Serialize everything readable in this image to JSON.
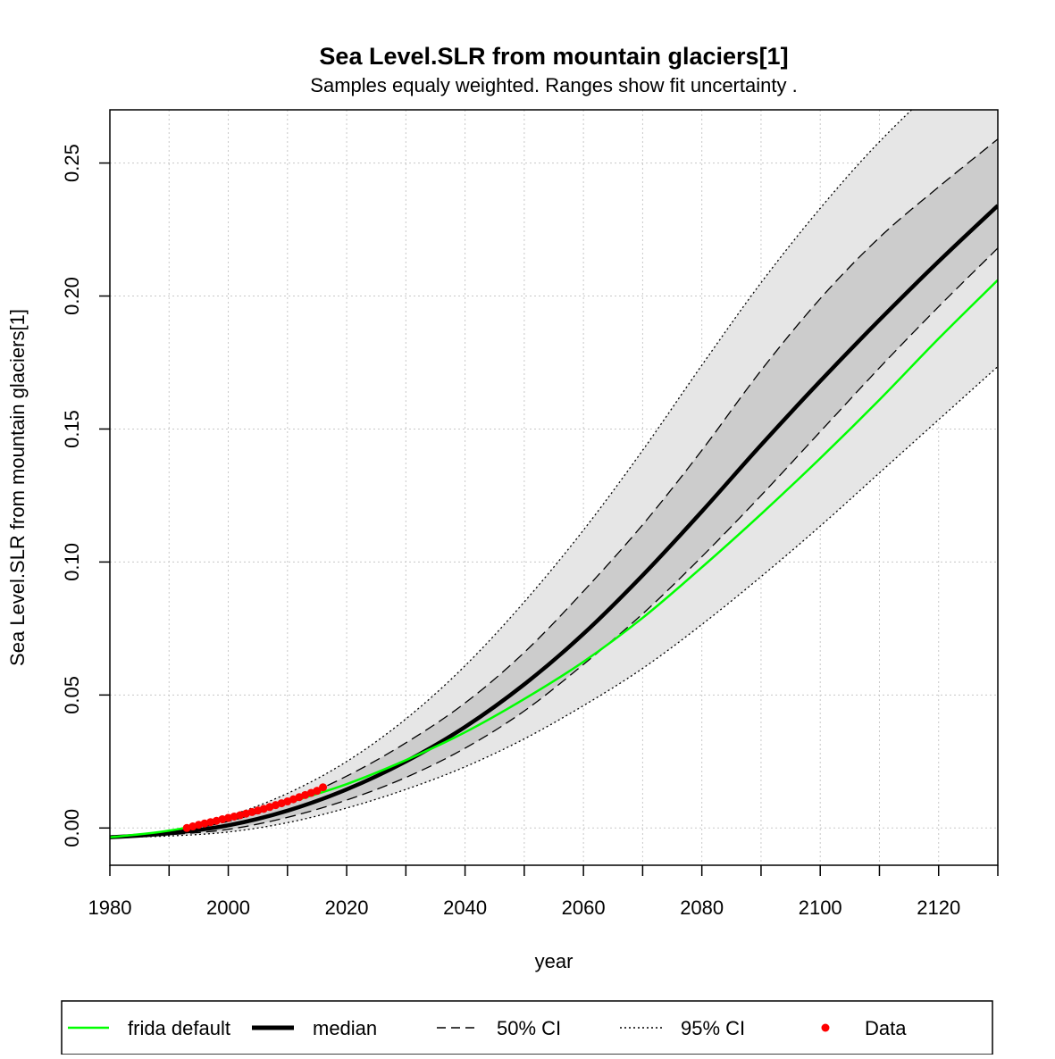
{
  "chart_data": {
    "type": "line",
    "title": "Sea Level.SLR from mountain glaciers[1]",
    "subtitle": "Samples equaly weighted. Ranges show  fit uncertainty .",
    "xlabel": "year",
    "ylabel": "Sea Level.SLR from mountain glaciers[1]",
    "xlim": [
      1980,
      2130
    ],
    "ylim": [
      -0.014,
      0.27
    ],
    "xticks": [
      1980,
      2000,
      2020,
      2040,
      2060,
      2080,
      2100,
      2120
    ],
    "xtick_labels": [
      "1980",
      "2000",
      "2020",
      "2040",
      "2060",
      "2080",
      "2100",
      "2120"
    ],
    "xminor_ticks": [
      1990,
      2010,
      2030,
      2050,
      2070,
      2090,
      2110,
      2130
    ],
    "yticks": [
      0.0,
      0.05,
      0.1,
      0.15,
      0.2,
      0.25
    ],
    "ytick_labels": [
      "0.00",
      "0.05",
      "0.10",
      "0.15",
      "0.20",
      "0.25"
    ],
    "grid": true,
    "legend": {
      "placement": "bottom",
      "items": [
        {
          "label": "frida default",
          "style": "solid",
          "color": "#00ff00"
        },
        {
          "label": "median",
          "style": "thick",
          "color": "#000000"
        },
        {
          "label": "50% CI",
          "style": "dashed",
          "color": "#000000"
        },
        {
          "label": "95% CI",
          "style": "dotted",
          "color": "#000000"
        },
        {
          "label": "Data",
          "style": "point",
          "color": "#ff0000"
        }
      ]
    },
    "colors": {
      "band95": "#e6e6e6",
      "band50": "#cccccc",
      "frida": "#00ff00",
      "data": "#ff0000",
      "grid": "#c8c8c8"
    },
    "x": [
      1980,
      1990,
      2000,
      2010,
      2020,
      2030,
      2040,
      2050,
      2060,
      2070,
      2080,
      2090,
      2100,
      2110,
      2120,
      2130
    ],
    "series": [
      {
        "name": "median",
        "values": [
          -0.0035,
          -0.002,
          0.001,
          0.0065,
          0.0145,
          0.025,
          0.038,
          0.054,
          0.073,
          0.095,
          0.119,
          0.144,
          0.168,
          0.191,
          0.213,
          0.234
        ]
      },
      {
        "name": "frida default",
        "values": [
          -0.0035,
          -0.001,
          0.0035,
          0.0095,
          0.0165,
          0.0255,
          0.036,
          0.0485,
          0.0625,
          0.079,
          0.098,
          0.118,
          0.139,
          0.161,
          0.184,
          0.206
        ]
      },
      {
        "name": "50% CI upper",
        "values": [
          -0.0035,
          -0.0015,
          0.0025,
          0.0095,
          0.0195,
          0.032,
          0.047,
          0.066,
          0.089,
          0.114,
          0.142,
          0.172,
          0.199,
          0.222,
          0.241,
          0.259
        ]
      },
      {
        "name": "50% CI lower",
        "values": [
          -0.0035,
          -0.0025,
          -0.0005,
          0.004,
          0.0105,
          0.019,
          0.03,
          0.044,
          0.0615,
          0.0805,
          0.102,
          0.125,
          0.149,
          0.173,
          0.196,
          0.218
        ]
      },
      {
        "name": "95% CI upper",
        "values": [
          -0.0035,
          -0.001,
          0.0045,
          0.013,
          0.025,
          0.041,
          0.061,
          0.085,
          0.112,
          0.142,
          0.174,
          0.205,
          0.233,
          0.258,
          0.279,
          0.295
        ]
      },
      {
        "name": "95% CI lower",
        "values": [
          -0.0035,
          -0.003,
          -0.0015,
          0.002,
          0.0075,
          0.0145,
          0.023,
          0.0335,
          0.046,
          0.06,
          0.0765,
          0.0945,
          0.1135,
          0.1335,
          0.1535,
          0.1735
        ]
      }
    ],
    "data_points": {
      "name": "Data",
      "x": [
        1993,
        1994,
        1995,
        1996,
        1997,
        1998,
        1999,
        2000,
        2001,
        2002,
        2003,
        2004,
        2005,
        2006,
        2007,
        2008,
        2009,
        2010,
        2011,
        2012,
        2013,
        2014,
        2015,
        2016
      ],
      "y": [
        0.0,
        0.0006,
        0.0012,
        0.0017,
        0.0022,
        0.0027,
        0.0033,
        0.0038,
        0.0043,
        0.0048,
        0.0054,
        0.006,
        0.0066,
        0.0072,
        0.0079,
        0.0086,
        0.0093,
        0.01,
        0.0108,
        0.0116,
        0.0124,
        0.0132,
        0.014,
        0.0153
      ]
    }
  }
}
